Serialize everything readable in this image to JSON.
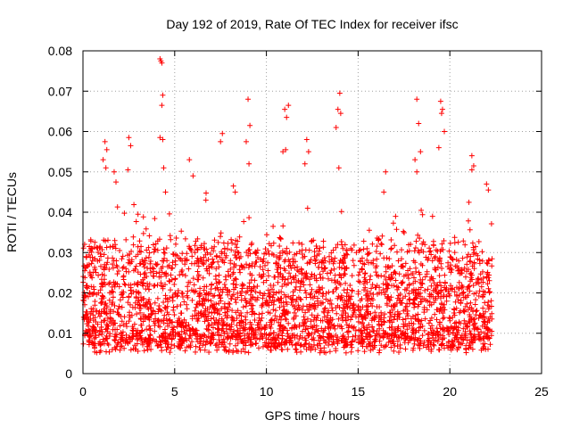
{
  "chart_data": {
    "type": "scatter",
    "title": "Day 192 of 2019, Rate Of TEC Index for receiver ifsc",
    "xlabel": "GPS time / hours",
    "ylabel": "ROTI / TECUs",
    "xlim": [
      0,
      25
    ],
    "ylim": [
      0,
      0.08
    ],
    "grid": true,
    "marker": "+",
    "series": [
      {
        "name": "ROTI",
        "color": "#ff0000",
        "x_range": [
          0,
          22.3
        ],
        "typical_range": [
          0.005,
          0.035
        ],
        "x": [
          4.2,
          4.25,
          4.3,
          4.35,
          4.3,
          4.2,
          4.35,
          4.4,
          4.5,
          14.0,
          13.9,
          14.05,
          13.8,
          13.95,
          18.2,
          18.3,
          18.4,
          18.1,
          18.2,
          19.5,
          19.6,
          19.55,
          19.7,
          19.4,
          9.0,
          9.1,
          8.9,
          9.05,
          11.0,
          11.1,
          11.2,
          11.05,
          10.9,
          12.2,
          12.3,
          12.1,
          1.2,
          1.3,
          1.1,
          1.25,
          2.5,
          2.6,
          2.45,
          1.7,
          1.8,
          7.5,
          7.6,
          5.8,
          6.0,
          21.2,
          21.3,
          21.2,
          22.0,
          22.1,
          16.5,
          16.4,
          8.2,
          8.3,
          3.0,
          6.7
        ],
        "y": [
          0.078,
          0.0775,
          0.077,
          0.069,
          0.0665,
          0.0585,
          0.058,
          0.051,
          0.045,
          0.0695,
          0.0655,
          0.0645,
          0.061,
          0.051,
          0.068,
          0.062,
          0.055,
          0.053,
          0.05,
          0.0675,
          0.0655,
          0.0645,
          0.06,
          0.056,
          0.068,
          0.0615,
          0.0575,
          0.052,
          0.0655,
          0.0635,
          0.0665,
          0.0555,
          0.055,
          0.058,
          0.055,
          0.052,
          0.0575,
          0.0555,
          0.053,
          0.051,
          0.0585,
          0.0565,
          0.0505,
          0.05,
          0.0475,
          0.0575,
          0.0595,
          0.053,
          0.049,
          0.054,
          0.0515,
          0.0505,
          0.047,
          0.0455,
          0.05,
          0.045,
          0.0465,
          0.045,
          0.0395,
          0.043
        ]
      }
    ],
    "xticks": [
      0,
      5,
      10,
      15,
      20,
      25
    ],
    "yticks": [
      0,
      0.01,
      0.02,
      0.03,
      0.04,
      0.05,
      0.06,
      0.07,
      0.08
    ],
    "xtick_labels": [
      "0",
      "5",
      "10",
      "15",
      "20",
      "25"
    ],
    "ytick_labels": [
      "0",
      "0.01",
      "0.02",
      "0.03",
      "0.04",
      "0.05",
      "0.06",
      "0.07",
      "0.08"
    ]
  }
}
